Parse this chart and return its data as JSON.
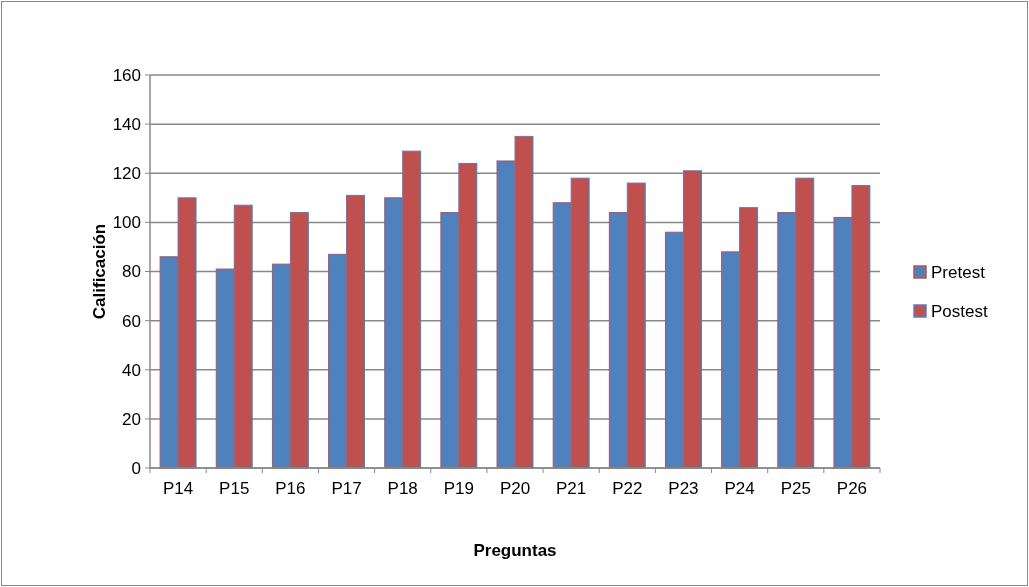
{
  "chart_data": {
    "type": "bar",
    "xlabel": "Preguntas",
    "ylabel": "Calificación",
    "categories": [
      "P14",
      "P15",
      "P16",
      "P17",
      "P18",
      "P19",
      "P20",
      "P21",
      "P22",
      "P23",
      "P24",
      "P25",
      "P26"
    ],
    "series": [
      {
        "name": "Pretest",
        "color": "#4f81bd",
        "values": [
          86,
          81,
          83,
          87,
          110,
          104,
          125,
          108,
          104,
          96,
          88,
          104,
          102
        ]
      },
      {
        "name": "Postest",
        "color": "#c0504d",
        "values": [
          110,
          107,
          104,
          111,
          129,
          124,
          135,
          118,
          116,
          121,
          106,
          118,
          115
        ]
      }
    ],
    "ylim": [
      0,
      160
    ],
    "yticks": [
      0,
      20,
      40,
      60,
      80,
      100,
      120,
      140,
      160
    ],
    "grid": "y",
    "legend": "right"
  }
}
